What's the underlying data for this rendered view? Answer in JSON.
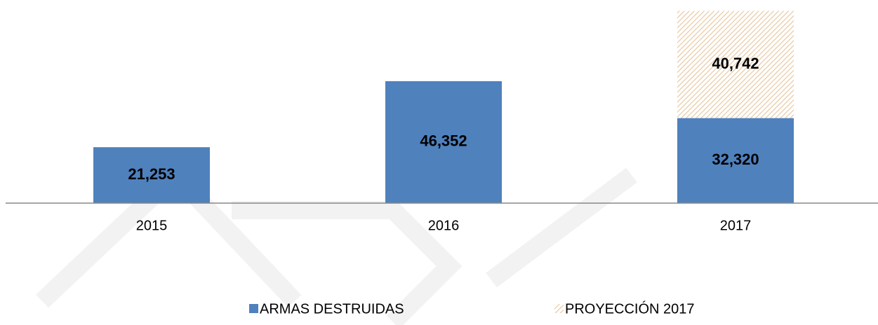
{
  "chart_data": {
    "type": "stacked_bar",
    "categories": [
      "2015",
      "2016",
      "2017"
    ],
    "series": [
      {
        "name": "ARMAS DESTRUIDAS",
        "color": "#4f81bd",
        "values": [
          21253,
          46352,
          32320
        ],
        "value_labels": [
          "21,253",
          "46,352",
          "32,320"
        ]
      },
      {
        "name": "PROYECCIÓN 2017",
        "color": "#e6c49a",
        "values": [
          null,
          null,
          40742
        ],
        "value_labels": [
          null,
          null,
          "40,742"
        ]
      }
    ],
    "ylim": [
      0,
      74000
    ]
  }
}
